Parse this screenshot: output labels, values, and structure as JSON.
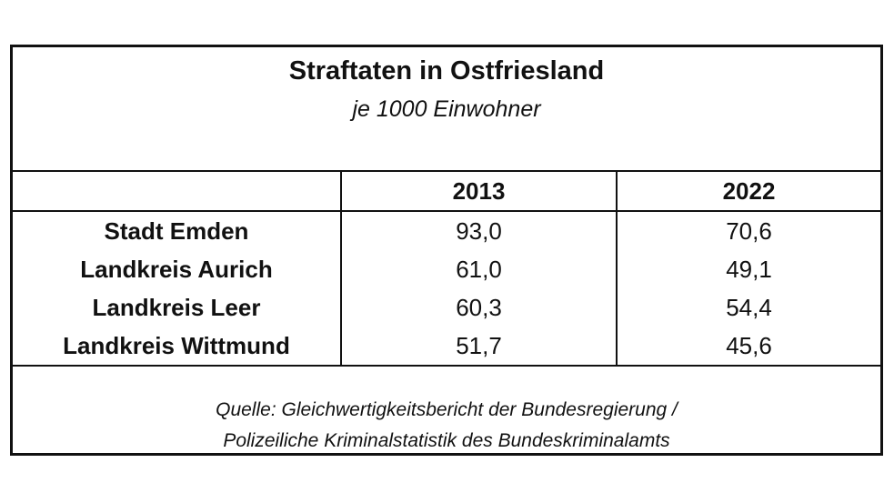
{
  "chart_data": {
    "type": "table",
    "title": "Straftaten in Ostfriesland",
    "subtitle": "je 1000 Einwohner",
    "columns": [
      "",
      "2013",
      "2022"
    ],
    "rows": [
      {
        "label": "Stadt Emden",
        "values": [
          "93,0",
          "70,6"
        ]
      },
      {
        "label": "Landkreis Aurich",
        "values": [
          "61,0",
          "49,1"
        ]
      },
      {
        "label": "Landkreis Leer",
        "values": [
          "60,3",
          "54,4"
        ]
      },
      {
        "label": "Landkreis Wittmund",
        "values": [
          "51,7",
          "45,6"
        ]
      }
    ],
    "source_line1": "Quelle: Gleichwertigkeitsbericht der Bundesregierung /",
    "source_line2": "Polizeiliche Kriminalstatistik des Bundeskriminalamts"
  }
}
